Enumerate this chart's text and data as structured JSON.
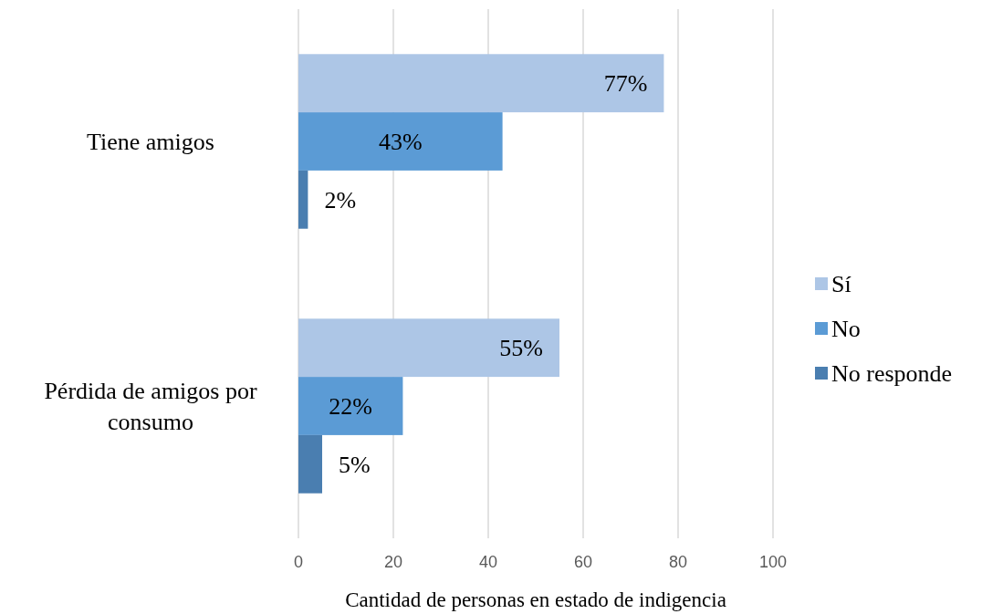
{
  "chart_data": {
    "type": "bar",
    "orientation": "horizontal",
    "categories": [
      "Tiene amigos",
      "Pérdida de amigos por consumo"
    ],
    "series": [
      {
        "name": "Sí",
        "color": "#adc6e6",
        "values": [
          77,
          55
        ],
        "value_labels": [
          "77%",
          "55%"
        ]
      },
      {
        "name": "No",
        "color": "#5b9bd5",
        "values": [
          43,
          22
        ],
        "value_labels": [
          "43%",
          "22%"
        ]
      },
      {
        "name": "No responde",
        "color": "#4a7eb0",
        "values": [
          2,
          5
        ],
        "value_labels": [
          "2%",
          "5%"
        ]
      }
    ],
    "xlim": [
      0,
      100
    ],
    "xticks": [
      0,
      20,
      40,
      60,
      80,
      100
    ],
    "xlabel": "Cantidad de personas en estado de indigencia",
    "grid": "x",
    "legend": "right"
  }
}
